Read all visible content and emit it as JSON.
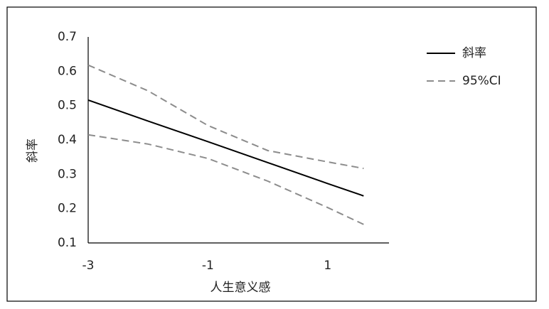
{
  "chart_data": {
    "type": "line",
    "x_label": "人生意义感",
    "y_label": "斜率",
    "x": [
      -3,
      -2,
      -1,
      0,
      1,
      1.6
    ],
    "series": [
      {
        "name": "斜率",
        "color": "#000000",
        "dash": false,
        "values": [
          0.516,
          0.455,
          0.395,
          0.334,
          0.273,
          0.237
        ]
      },
      {
        "name": "95%CI",
        "color": "#8c8c8c",
        "dash": true,
        "values": [
          0.618,
          0.543,
          0.442,
          0.369,
          0.336,
          0.317
        ]
      },
      {
        "color": "#8c8c8c",
        "dash": true,
        "values": [
          0.415,
          0.388,
          0.346,
          0.28,
          0.203,
          0.154
        ]
      }
    ],
    "xlim": [
      -3,
      2
    ],
    "xticks": [
      -3,
      -1,
      1
    ],
    "ylim": [
      0.1,
      0.7
    ],
    "yticks": [
      0.1,
      0.2,
      0.3,
      0.4,
      0.5,
      0.6,
      0.7
    ],
    "grid": false,
    "legend": "right"
  }
}
